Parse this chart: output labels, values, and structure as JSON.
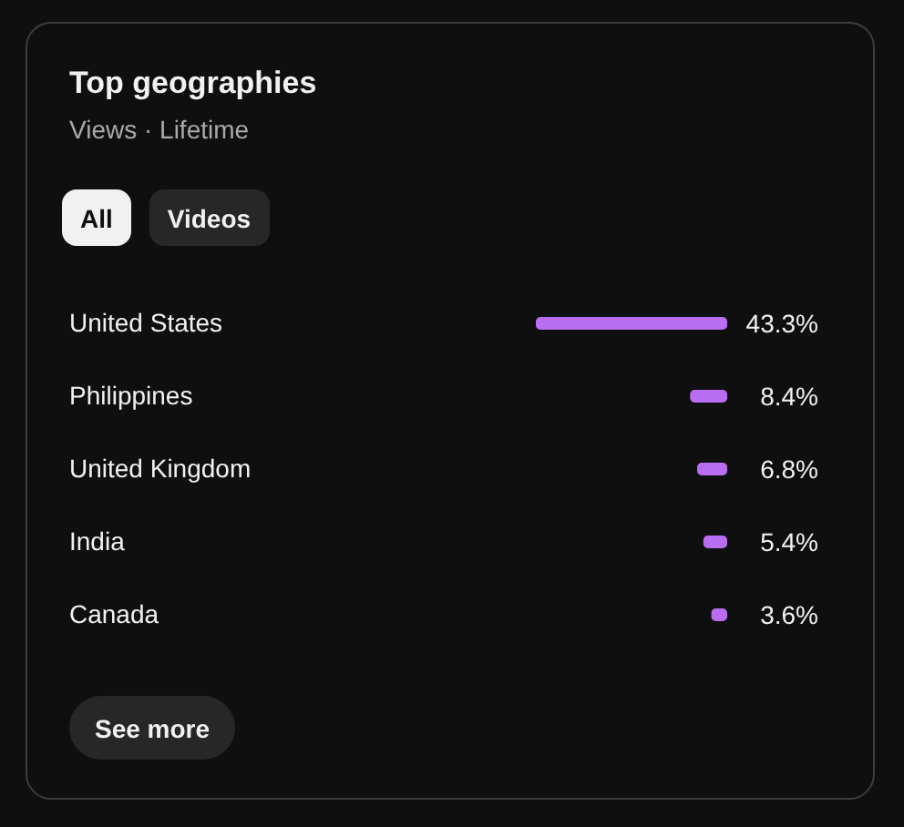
{
  "chart_data": {
    "type": "bar",
    "orientation": "horizontal",
    "title": "Top geographies",
    "subtitle": "Views · Lifetime",
    "categories": [
      "United States",
      "Philippines",
      "United Kingdom",
      "India",
      "Canada"
    ],
    "values": [
      43.3,
      8.4,
      6.8,
      5.4,
      3.6
    ],
    "value_labels": [
      "43.3%",
      "8.4%",
      "6.8%",
      "5.4%",
      "3.6%"
    ],
    "color": "#b96ef2",
    "xlim": [
      43.3,
      0
    ],
    "annotations": [
      "All",
      "Videos",
      "See more"
    ]
  }
}
